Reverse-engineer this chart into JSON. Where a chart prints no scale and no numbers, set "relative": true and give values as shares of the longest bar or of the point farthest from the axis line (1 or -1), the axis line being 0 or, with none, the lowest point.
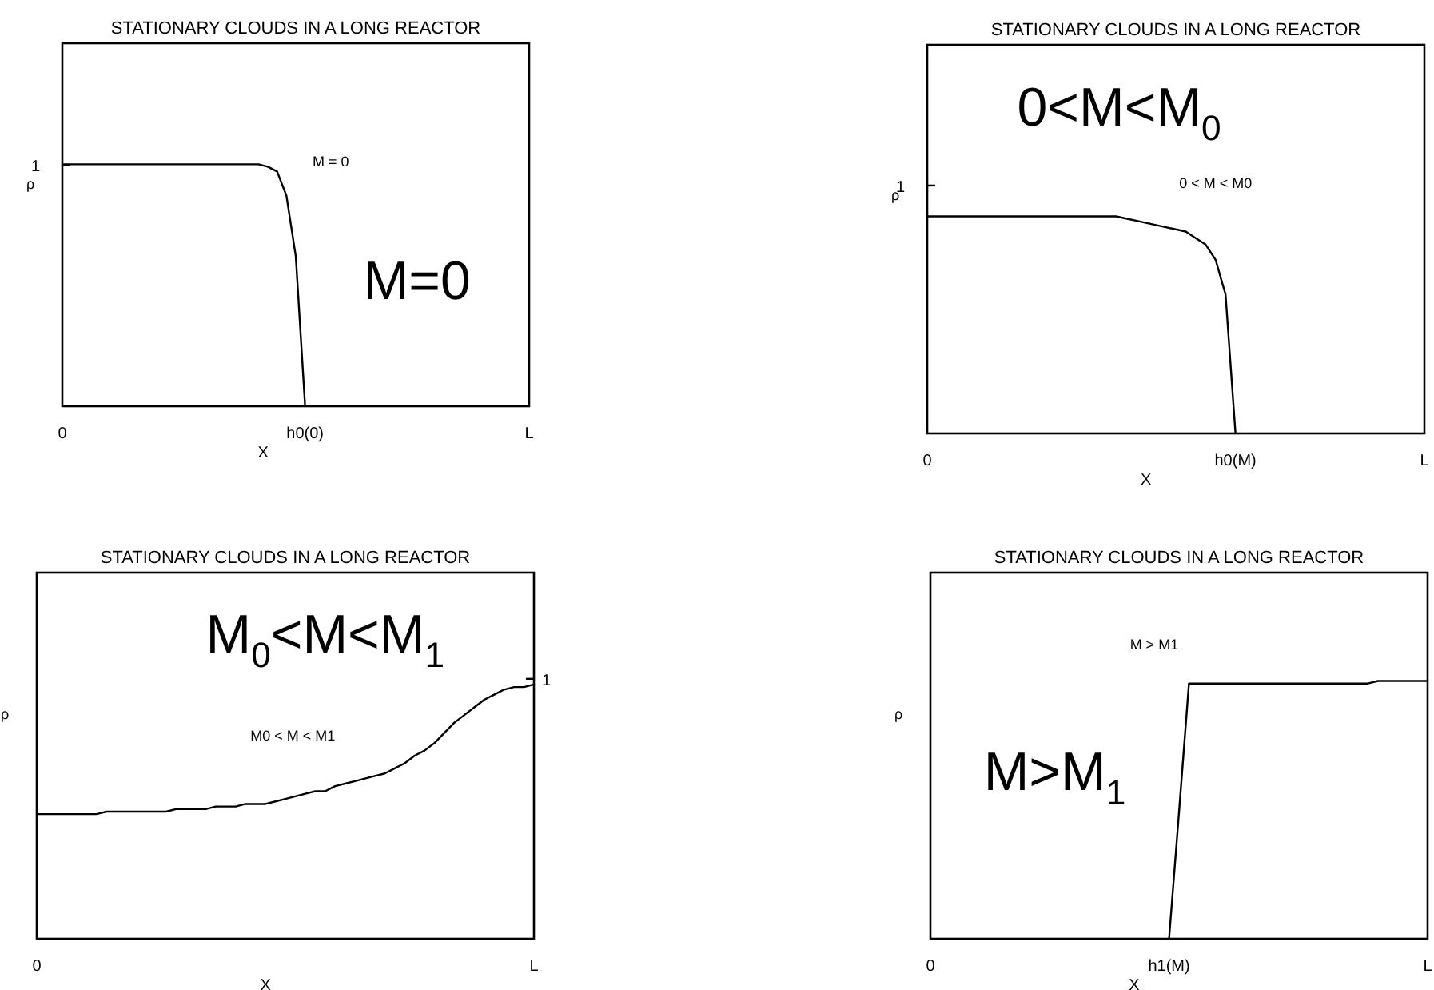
{
  "chart_data": [
    {
      "type": "line",
      "title": "STATIONARY CLOUDS IN A LONG REACTOR",
      "xlabel": "X",
      "ylabel": "ρ",
      "relative": true,
      "categories": [
        "0",
        null,
        null,
        null,
        null,
        null,
        null,
        null,
        null,
        null,
        null,
        null,
        null,
        null,
        null,
        null,
        null,
        null,
        null,
        null,
        null,
        null,
        null,
        null,
        null,
        null,
        "h0(0)",
        null,
        null,
        null,
        null,
        null,
        null,
        null,
        null,
        null,
        null,
        null,
        null,
        null,
        null,
        null,
        null,
        null,
        null,
        null,
        null,
        null,
        null,
        null,
        "L"
      ],
      "series": [
        {
          "color": "#000000",
          "values": [
            1,
            1,
            1,
            1,
            1,
            1,
            1,
            1,
            1,
            1,
            1,
            1,
            1,
            1,
            1,
            1,
            1,
            1,
            1,
            1,
            1,
            1,
            0.99,
            0.97,
            0.87,
            0.62,
            0,
            null,
            null,
            null,
            null,
            null,
            null,
            null,
            null,
            null,
            null,
            null,
            null,
            null,
            null,
            null,
            null,
            null,
            null,
            null,
            null,
            null,
            null,
            null,
            null
          ]
        }
      ],
      "annotations": [
        "M = 0",
        "M=0",
        "1"
      ]
    },
    {
      "type": "line",
      "title": "STATIONARY CLOUDS IN A LONG REACTOR",
      "xlabel": "X",
      "ylabel": "ρ",
      "relative": true,
      "categories": [
        "0",
        null,
        null,
        null,
        null,
        null,
        null,
        null,
        null,
        null,
        null,
        null,
        null,
        null,
        null,
        null,
        null,
        null,
        null,
        null,
        null,
        null,
        null,
        null,
        null,
        null,
        null,
        null,
        null,
        null,
        null,
        "h0(M)",
        null,
        null,
        null,
        null,
        null,
        null,
        null,
        null,
        null,
        null,
        null,
        null,
        null,
        null,
        null,
        null,
        null,
        null,
        "L"
      ],
      "series": [
        {
          "color": "#000000",
          "values": [
            1,
            1,
            1,
            1,
            1,
            1,
            1,
            1,
            1,
            1,
            1,
            1,
            1,
            1,
            1,
            1,
            1,
            1,
            1,
            1,
            0.99,
            0.98,
            0.97,
            0.96,
            0.95,
            0.94,
            0.93,
            0.9,
            0.87,
            0.8,
            0.64,
            0,
            null,
            null,
            null,
            null,
            null,
            null,
            null,
            null,
            null,
            null,
            null,
            null,
            null,
            null,
            null,
            null,
            null,
            null,
            null
          ]
        }
      ],
      "annotations": [
        "0 < M < M0",
        "0<M<M$_{0}$",
        "1"
      ]
    },
    {
      "type": "line",
      "title": "STATIONARY CLOUDS IN A LONG REACTOR",
      "xlabel": "X",
      "ylabel": "ρ",
      "relative": true,
      "categories": [
        "0",
        null,
        null,
        null,
        null,
        null,
        null,
        null,
        null,
        null,
        null,
        null,
        null,
        null,
        null,
        null,
        null,
        null,
        null,
        null,
        null,
        null,
        null,
        null,
        null,
        null,
        null,
        null,
        null,
        null,
        null,
        null,
        null,
        null,
        null,
        null,
        null,
        null,
        null,
        null,
        null,
        null,
        null,
        null,
        null,
        null,
        null,
        null,
        null,
        null,
        "L"
      ],
      "series": [
        {
          "color": "#000000",
          "values": [
            0.49,
            0.49,
            0.49,
            0.49,
            0.49,
            0.49,
            0.49,
            0.5,
            0.5,
            0.5,
            0.5,
            0.5,
            0.5,
            0.5,
            0.51,
            0.51,
            0.51,
            0.51,
            0.52,
            0.52,
            0.52,
            0.53,
            0.53,
            0.53,
            0.54,
            0.55,
            0.56,
            0.57,
            0.58,
            0.58,
            0.6,
            0.61,
            0.62,
            0.63,
            0.64,
            0.65,
            0.67,
            0.69,
            0.72,
            0.74,
            0.77,
            0.81,
            0.85,
            0.88,
            0.91,
            0.94,
            0.96,
            0.98,
            0.99,
            0.99,
            1
          ]
        }
      ],
      "annotations": [
        "M0 < M < M1",
        "M$_{0}$<M<M$_{1}$",
        "1"
      ]
    },
    {
      "type": "line",
      "title": "STATIONARY CLOUDS IN A LONG REACTOR",
      "xlabel": "X",
      "ylabel": "ρ",
      "relative": true,
      "categories": [
        "0",
        null,
        null,
        null,
        null,
        null,
        null,
        null,
        null,
        null,
        null,
        null,
        null,
        null,
        null,
        null,
        null,
        null,
        null,
        null,
        null,
        null,
        null,
        null,
        "h1(M)",
        null,
        null,
        null,
        null,
        null,
        null,
        null,
        null,
        null,
        null,
        null,
        null,
        null,
        null,
        null,
        null,
        null,
        null,
        null,
        null,
        null,
        null,
        null,
        null,
        null,
        "L"
      ],
      "series": [
        {
          "color": "#000000",
          "values": [
            null,
            null,
            null,
            null,
            null,
            null,
            null,
            null,
            null,
            null,
            null,
            null,
            null,
            null,
            null,
            null,
            null,
            null,
            null,
            null,
            null,
            null,
            null,
            null,
            0,
            0.49,
            0.99,
            0.99,
            0.99,
            0.99,
            0.99,
            0.99,
            0.99,
            0.99,
            0.99,
            0.99,
            0.99,
            0.99,
            0.99,
            0.99,
            0.99,
            0.99,
            0.99,
            0.99,
            0.99,
            1,
            1,
            1,
            1,
            1,
            1
          ]
        }
      ],
      "annotations": [
        "M > M1",
        "M>M$_{1}$"
      ]
    }
  ]
}
